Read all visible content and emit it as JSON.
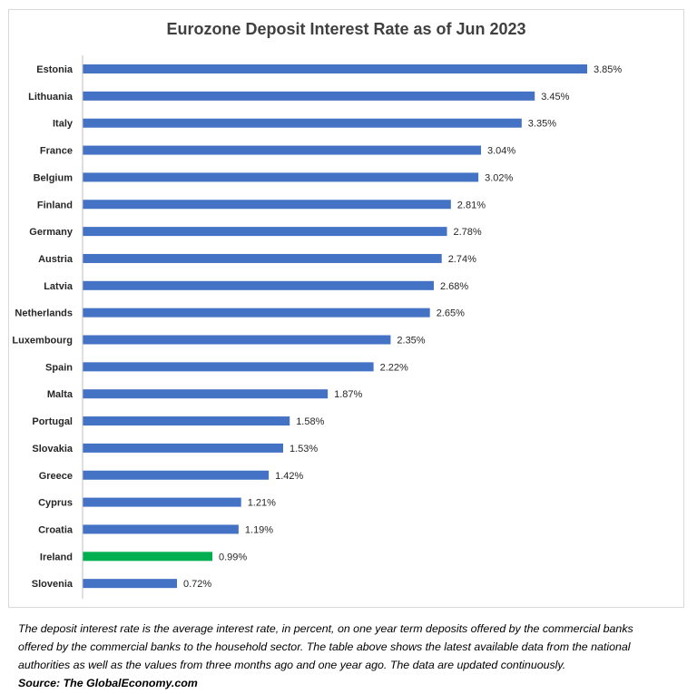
{
  "chart_data": {
    "type": "bar",
    "orientation": "horizontal",
    "title": "Eurozone Deposit Interest Rate as of Jun 2023",
    "categories": [
      "Estonia",
      "Lithuania",
      "Italy",
      "France",
      "Belgium",
      "Finland",
      "Germany",
      "Austria",
      "Latvia",
      "Netherlands",
      "Luxembourg",
      "Spain",
      "Malta",
      "Portugal",
      "Slovakia",
      "Greece",
      "Cyprus",
      "Croatia",
      "Ireland",
      "Slovenia"
    ],
    "values": [
      3.85,
      3.45,
      3.35,
      3.04,
      3.02,
      2.81,
      2.78,
      2.74,
      2.68,
      2.65,
      2.35,
      2.22,
      1.87,
      1.58,
      1.53,
      1.42,
      1.21,
      1.19,
      0.99,
      0.72
    ],
    "labels": [
      "3.85%",
      "3.45%",
      "3.35%",
      "3.04%",
      "3.02%",
      "2.81%",
      "2.78%",
      "2.74%",
      "2.68%",
      "2.65%",
      "2.35%",
      "2.22%",
      "1.87%",
      "1.58%",
      "1.53%",
      "1.42%",
      "1.21%",
      "1.19%",
      "0.99%",
      "0.72%"
    ],
    "highlight": "Ireland",
    "colors": {
      "bar": "#4472C4",
      "highlight": "#00B050",
      "axis": "#bfbfbf",
      "text": "#262626"
    },
    "xlim": [
      0,
      3.85
    ],
    "xlabel": "",
    "ylabel": "",
    "grid": false,
    "legend": "none"
  },
  "footnote": {
    "lines": [
      "The deposit interest rate is the average interest rate, in percent, on one year term deposits offered by the commercial banks",
      "offered by the commercial banks to the household sector. The table above shows the latest available data from  the national",
      "authorities as well as the values from three months ago and one year ago. The data are updated continuously."
    ],
    "source": "Source: The GlobalEconomy.com"
  }
}
